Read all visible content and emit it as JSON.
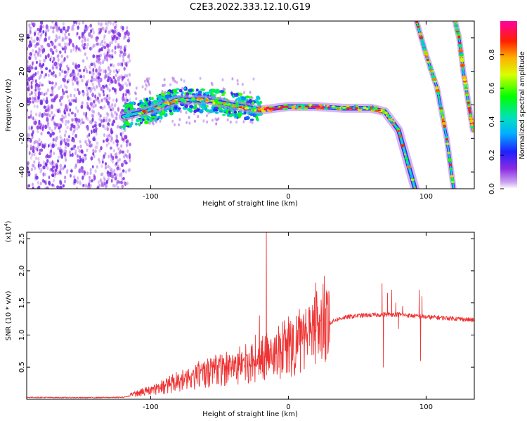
{
  "title": "C2E3.2022.333.12.10.G19",
  "colors": {
    "snr_line": "#ee3333",
    "frame": "#000000",
    "background": "#ffffff"
  },
  "chart_data": [
    {
      "type": "heatmap",
      "xlabel": "Height of straight line (km)",
      "ylabel": "Frequency (Hz)",
      "xlim": [
        -190,
        135
      ],
      "ylim": [
        -50,
        50
      ],
      "x_ticks": [
        -100,
        0,
        100
      ],
      "y_ticks": [
        -40,
        -20,
        0,
        20,
        40
      ],
      "grid": false,
      "colorbar": {
        "label": "Normalized spectral amplitude",
        "range": [
          0,
          1
        ],
        "ticks": [
          0.0,
          0.2,
          0.4,
          0.6,
          0.8
        ],
        "colormap": "rainbow (violet → blue → cyan → green → yellow → red → magenta)"
      },
      "features": [
        {
          "name": "noise",
          "x_range": [
            -190,
            -115
          ],
          "y_range": [
            -50,
            50
          ],
          "amplitude": 0.1
        },
        {
          "name": "main-track",
          "points": [
            [
              -120,
              -7
            ],
            [
              -100,
              -3
            ],
            [
              -80,
              3
            ],
            [
              -60,
              3
            ],
            [
              -40,
              0
            ],
            [
              -20,
              -3
            ],
            [
              0,
              -1
            ],
            [
              20,
              -1
            ],
            [
              40,
              -2
            ],
            [
              60,
              -2
            ],
            [
              70,
              -4
            ],
            [
              80,
              -15
            ],
            [
              92,
              -50
            ]
          ],
          "amplitude": 0.5
        },
        {
          "name": "steep-track-1",
          "points": [
            [
              93,
              50
            ],
            [
              100,
              30
            ],
            [
              108,
              10
            ],
            [
              115,
              -20
            ],
            [
              120,
              -50
            ]
          ],
          "amplitude": 0.3
        },
        {
          "name": "steep-track-2",
          "points": [
            [
              121,
              50
            ],
            [
              124,
              40
            ],
            [
              127,
              20
            ],
            [
              131,
              0
            ],
            [
              134,
              -15
            ]
          ],
          "amplitude": 0.3
        }
      ]
    },
    {
      "type": "line",
      "xlabel": "Height of straight line (km)",
      "ylabel": "SNR (10 * v/v)",
      "y_multiplier": "(x10",
      "y_multiplier_exp": "4",
      "y_multiplier_close": ")",
      "xlim": [
        -190,
        135
      ],
      "ylim": [
        0,
        26000
      ],
      "x_ticks": [
        -100,
        0,
        100
      ],
      "y_ticks": [
        5000,
        10000,
        15000,
        20000,
        25000
      ],
      "y_tick_labels": [
        "0.5",
        "1.0",
        "1.5",
        "2.0",
        "2.5"
      ],
      "grid": false,
      "series_profile": [
        [
          -190,
          300
        ],
        [
          -150,
          250
        ],
        [
          -120,
          300
        ],
        [
          -110,
          800
        ],
        [
          -100,
          1200
        ],
        [
          -90,
          1800
        ],
        [
          -80,
          2500
        ],
        [
          -70,
          3000
        ],
        [
          -60,
          3800
        ],
        [
          -50,
          4300
        ],
        [
          -40,
          4500
        ],
        [
          -30,
          5000
        ],
        [
          -20,
          5400
        ],
        [
          -15,
          6000
        ],
        [
          -10,
          6500
        ],
        [
          -5,
          7000
        ],
        [
          0,
          7600
        ],
        [
          5,
          8200
        ],
        [
          10,
          8600
        ],
        [
          15,
          9500
        ],
        [
          20,
          10500
        ],
        [
          25,
          11200
        ],
        [
          30,
          11900
        ],
        [
          35,
          12400
        ],
        [
          40,
          12700
        ],
        [
          50,
          13000
        ],
        [
          60,
          13100
        ],
        [
          70,
          13200
        ],
        [
          80,
          13200
        ],
        [
          90,
          13000
        ],
        [
          100,
          12800
        ],
        [
          110,
          12700
        ],
        [
          120,
          12600
        ],
        [
          135,
          12300
        ]
      ],
      "spikes": [
        [
          -16,
          26000
        ],
        [
          -21,
          13000
        ],
        [
          -24,
          10000
        ],
        [
          8,
          14000
        ],
        [
          10,
          12000
        ],
        [
          68,
          18000
        ],
        [
          69,
          5000
        ],
        [
          72,
          16500
        ],
        [
          75,
          17000
        ],
        [
          78,
          15000
        ],
        [
          80,
          11000
        ],
        [
          83,
          14500
        ],
        [
          95,
          17000
        ],
        [
          96,
          6000
        ],
        [
          97,
          16000
        ]
      ]
    }
  ]
}
